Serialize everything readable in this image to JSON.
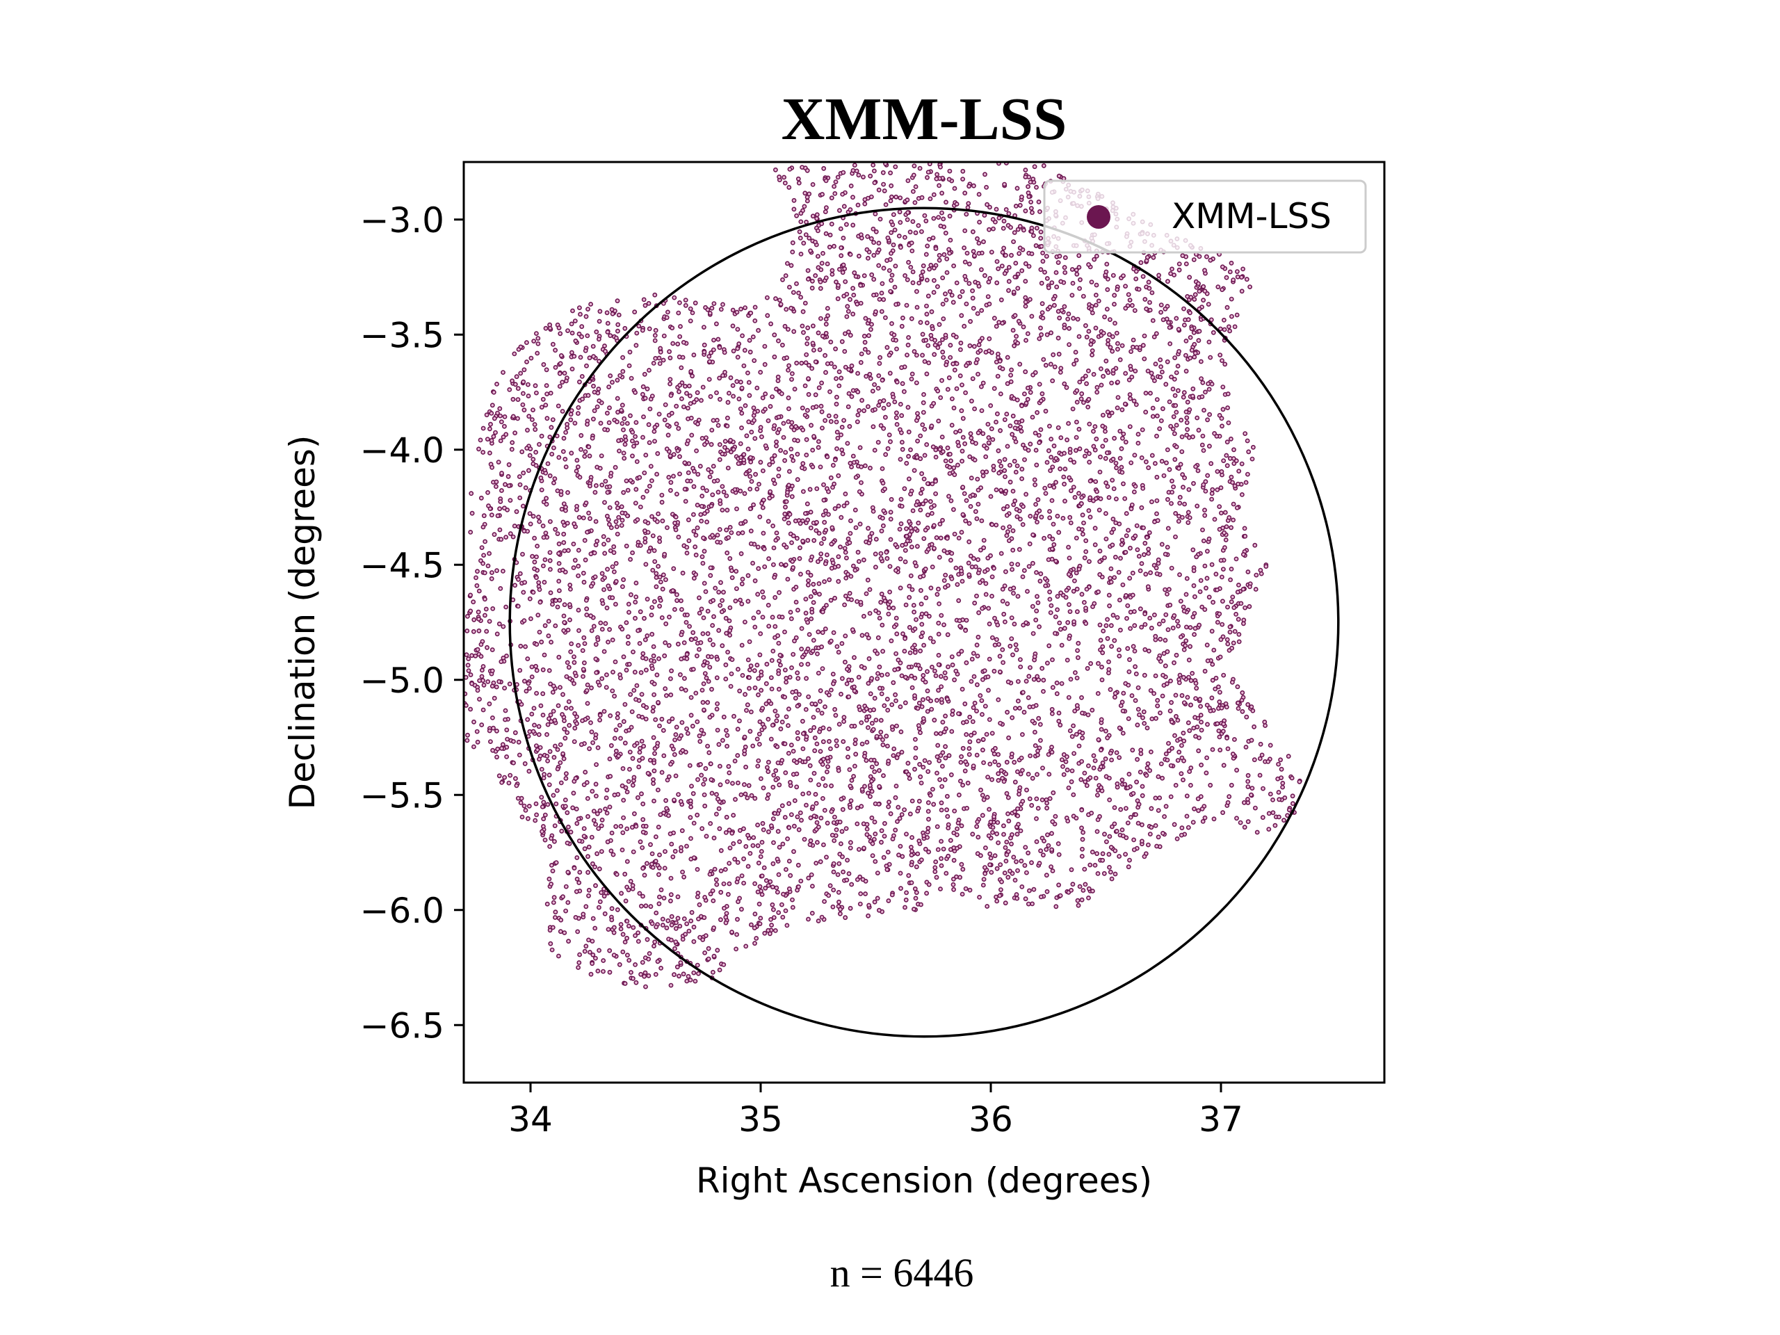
{
  "chart_data": {
    "type": "scatter",
    "title": "XMM-LSS",
    "xlabel": "Right Ascension (degrees)",
    "ylabel": "Declination (degrees)",
    "xlim": [
      33.71,
      37.71
    ],
    "ylim": [
      -6.75,
      -2.75
    ],
    "xticks": [
      34,
      35,
      36,
      37
    ],
    "yticks": [
      -3.0,
      -3.5,
      -4.0,
      -4.5,
      -5.0,
      -5.5,
      -6.0,
      -6.5
    ],
    "xtick_labels": [
      "34",
      "35",
      "36",
      "37"
    ],
    "ytick_labels": [
      "−3.0",
      "−3.5",
      "−4.0",
      "−4.5",
      "−5.0",
      "−5.5",
      "−6.0",
      "−6.5"
    ],
    "grid": false,
    "legend": {
      "position": "top-right",
      "entries": [
        "XMM-LSS"
      ]
    },
    "series": [
      {
        "name": "XMM-LSS",
        "color": "#6b1650",
        "count": 6446,
        "footprint": [
          [
            33.71,
            -5.25
          ],
          [
            33.72,
            -4.3
          ],
          [
            33.78,
            -3.95
          ],
          [
            33.85,
            -3.7
          ],
          [
            33.95,
            -3.55
          ],
          [
            34.02,
            -3.5
          ],
          [
            34.1,
            -3.42
          ],
          [
            34.3,
            -3.35
          ],
          [
            34.5,
            -3.32
          ],
          [
            34.75,
            -3.35
          ],
          [
            35.0,
            -3.38
          ],
          [
            35.1,
            -3.2
          ],
          [
            35.15,
            -2.98
          ],
          [
            35.05,
            -2.78
          ],
          [
            35.5,
            -2.75
          ],
          [
            36.2,
            -2.75
          ],
          [
            36.5,
            -2.9
          ],
          [
            36.75,
            -3.05
          ],
          [
            37.0,
            -3.15
          ],
          [
            37.15,
            -3.25
          ],
          [
            37.05,
            -3.5
          ],
          [
            37.0,
            -3.7
          ],
          [
            37.15,
            -3.95
          ],
          [
            37.1,
            -4.3
          ],
          [
            37.2,
            -4.5
          ],
          [
            37.12,
            -4.75
          ],
          [
            37.05,
            -4.95
          ],
          [
            37.2,
            -5.2
          ],
          [
            37.35,
            -5.4
          ],
          [
            37.35,
            -5.6
          ],
          [
            37.15,
            -5.7
          ],
          [
            36.95,
            -5.6
          ],
          [
            36.8,
            -5.7
          ],
          [
            36.55,
            -5.85
          ],
          [
            36.4,
            -5.98
          ],
          [
            36.0,
            -6.0
          ],
          [
            35.8,
            -5.9
          ],
          [
            35.65,
            -6.02
          ],
          [
            35.3,
            -6.05
          ],
          [
            35.05,
            -6.1
          ],
          [
            34.8,
            -6.3
          ],
          [
            34.55,
            -6.35
          ],
          [
            34.3,
            -6.3
          ],
          [
            34.1,
            -6.2
          ],
          [
            34.05,
            -6.0
          ],
          [
            34.1,
            -5.75
          ],
          [
            33.95,
            -5.6
          ],
          [
            33.85,
            -5.4
          ]
        ]
      },
      {
        "name": "circle",
        "center": [
          35.71,
          -4.75
        ],
        "radius": 1.8,
        "color": "#000000"
      }
    ],
    "footer": "n = 6446"
  }
}
